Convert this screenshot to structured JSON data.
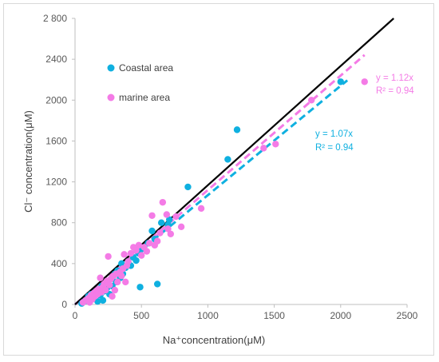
{
  "chart_data": {
    "type": "scatter",
    "xlabel": "Na⁺concentration(μM)",
    "ylabel": "Cl⁻ concentration(μM)",
    "xlim": [
      0,
      2500
    ],
    "ylim": [
      0,
      2800
    ],
    "xticks": [
      0,
      500,
      1000,
      1500,
      2000,
      2500
    ],
    "xtick_labels": [
      "0",
      "500",
      "1000",
      "1500",
      "2000",
      "2500"
    ],
    "yticks": [
      0,
      400,
      800,
      1200,
      1600,
      2000,
      2400,
      2800
    ],
    "ytick_labels": [
      "0",
      "400",
      "800",
      "1200",
      "1600",
      "2000",
      "2400",
      "2 800"
    ],
    "grid": false,
    "legend_position": "top-left",
    "series": [
      {
        "name": "Coastal area",
        "color": "#0fb0e0",
        "trend": {
          "slope": 1.07,
          "r2": 0.94,
          "label": "y = 1.07x",
          "r2_label": "R² = 0.94"
        },
        "points": [
          [
            50,
            10
          ],
          [
            70,
            30
          ],
          [
            90,
            50
          ],
          [
            100,
            80
          ],
          [
            110,
            60
          ],
          [
            120,
            100
          ],
          [
            140,
            70
          ],
          [
            150,
            120
          ],
          [
            170,
            30
          ],
          [
            180,
            150
          ],
          [
            190,
            90
          ],
          [
            200,
            180
          ],
          [
            210,
            40
          ],
          [
            220,
            130
          ],
          [
            230,
            200
          ],
          [
            240,
            160
          ],
          [
            250,
            230
          ],
          [
            260,
            100
          ],
          [
            270,
            250
          ],
          [
            280,
            180
          ],
          [
            300,
            300
          ],
          [
            310,
            220
          ],
          [
            320,
            330
          ],
          [
            340,
            260
          ],
          [
            350,
            400
          ],
          [
            360,
            300
          ],
          [
            380,
            360
          ],
          [
            400,
            420
          ],
          [
            420,
            380
          ],
          [
            440,
            460
          ],
          [
            460,
            430
          ],
          [
            480,
            500
          ],
          [
            490,
            170
          ],
          [
            500,
            540
          ],
          [
            520,
            560
          ],
          [
            550,
            600
          ],
          [
            580,
            720
          ],
          [
            600,
            640
          ],
          [
            620,
            200
          ],
          [
            650,
            800
          ],
          [
            700,
            780
          ],
          [
            710,
            830
          ],
          [
            850,
            1150
          ],
          [
            1150,
            1420
          ],
          [
            1220,
            1710
          ],
          [
            2000,
            2180
          ]
        ]
      },
      {
        "name": "marine area",
        "color": "#f47be6",
        "trend": {
          "slope": 1.12,
          "r2": 0.94,
          "label": "y = 1.12x",
          "r2_label": "R² = 0.94"
        },
        "points": [
          [
            60,
            20
          ],
          [
            80,
            40
          ],
          [
            100,
            60
          ],
          [
            110,
            20
          ],
          [
            120,
            90
          ],
          [
            130,
            50
          ],
          [
            140,
            110
          ],
          [
            150,
            80
          ],
          [
            160,
            130
          ],
          [
            170,
            100
          ],
          [
            180,
            150
          ],
          [
            190,
            260
          ],
          [
            200,
            120
          ],
          [
            210,
            170
          ],
          [
            220,
            200
          ],
          [
            230,
            140
          ],
          [
            240,
            230
          ],
          [
            250,
            470
          ],
          [
            260,
            190
          ],
          [
            270,
            250
          ],
          [
            280,
            80
          ],
          [
            290,
            280
          ],
          [
            300,
            140
          ],
          [
            310,
            300
          ],
          [
            320,
            220
          ],
          [
            340,
            320
          ],
          [
            350,
            280
          ],
          [
            360,
            350
          ],
          [
            370,
            490
          ],
          [
            380,
            220
          ],
          [
            390,
            380
          ],
          [
            400,
            420
          ],
          [
            420,
            500
          ],
          [
            440,
            560
          ],
          [
            460,
            530
          ],
          [
            480,
            580
          ],
          [
            500,
            480
          ],
          [
            520,
            560
          ],
          [
            540,
            520
          ],
          [
            560,
            600
          ],
          [
            580,
            870
          ],
          [
            600,
            580
          ],
          [
            620,
            620
          ],
          [
            640,
            700
          ],
          [
            660,
            1000
          ],
          [
            690,
            880
          ],
          [
            700,
            740
          ],
          [
            720,
            690
          ],
          [
            760,
            860
          ],
          [
            800,
            760
          ],
          [
            950,
            940
          ],
          [
            1420,
            1530
          ],
          [
            1510,
            1570
          ],
          [
            1780,
            2000
          ],
          [
            2180,
            2180
          ]
        ]
      }
    ],
    "reference_line": {
      "slope": 1.167,
      "color": "#000000"
    }
  }
}
